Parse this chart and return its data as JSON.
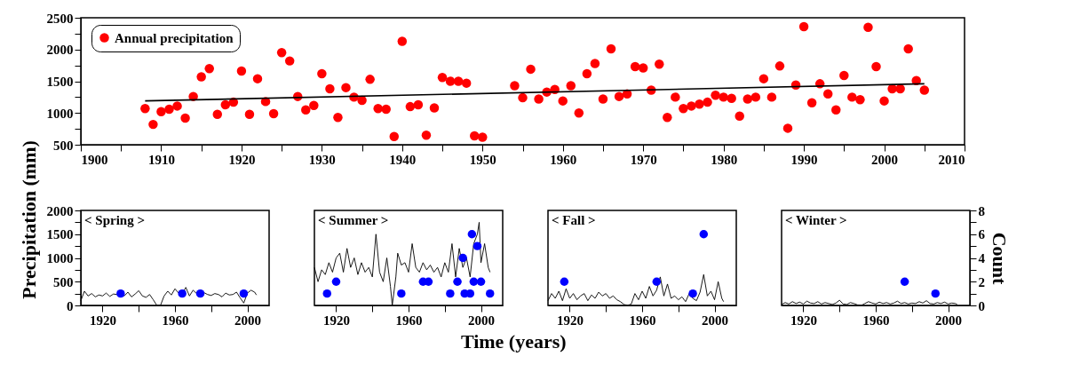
{
  "chart_data": [
    {
      "type": "scatter",
      "xlim": [
        1900,
        2010
      ],
      "ylim": [
        500,
        2500
      ],
      "marker": "circle",
      "legend": "top left",
      "grid": false,
      "xticks": [
        1900,
        {
          "value": 1905,
          "label": null
        },
        1910,
        {
          "value": 1915,
          "label": null
        },
        1920,
        {
          "value": 1925,
          "label": null
        },
        1930,
        {
          "value": 1935,
          "label": null
        },
        1940,
        {
          "value": 1945,
          "label": null
        },
        1950,
        {
          "value": 1955,
          "label": null
        },
        1960,
        {
          "value": 1965,
          "label": null
        },
        1970,
        {
          "value": 1975,
          "label": null
        },
        1980,
        {
          "value": 1985,
          "label": null
        },
        1990,
        {
          "value": 1995,
          "label": null
        },
        2000,
        {
          "value": 2005,
          "label": null
        },
        2010
      ],
      "yticks": [
        500,
        {
          "value": 750,
          "label": null
        },
        1000,
        {
          "value": 1250,
          "label": null
        },
        1500,
        {
          "value": 1750,
          "label": null
        },
        2000,
        {
          "value": 2250,
          "label": null
        },
        2500
      ],
      "series": [
        {
          "name": "Annual precipitation",
          "color": "#ff0000",
          "x": [
            1908,
            1909,
            1910,
            1911,
            1912,
            1913,
            1914,
            1915,
            1916,
            1917,
            1918,
            1919,
            1920,
            1921,
            1922,
            1923,
            1924,
            1925,
            1926,
            1927,
            1928,
            1929,
            1930,
            1931,
            1932,
            1933,
            1934,
            1935,
            1936,
            1937,
            1938,
            1939,
            1940,
            1941,
            1942,
            1943,
            1944,
            1945,
            1946,
            1947,
            1948,
            1949,
            1950,
            1954,
            1955,
            1956,
            1957,
            1958,
            1959,
            1960,
            1961,
            1962,
            1963,
            1964,
            1965,
            1966,
            1967,
            1968,
            1969,
            1970,
            1971,
            1972,
            1973,
            1974,
            1975,
            1976,
            1977,
            1978,
            1979,
            1980,
            1981,
            1982,
            1983,
            1984,
            1985,
            1986,
            1987,
            1988,
            1989,
            1990,
            1991,
            1992,
            1993,
            1994,
            1995,
            1996,
            1997,
            1998,
            1999,
            2000,
            2001,
            2002,
            2003,
            2004,
            2005
          ],
          "values": [
            1070,
            820,
            1020,
            1060,
            1110,
            920,
            1260,
            1570,
            1700,
            980,
            1130,
            1170,
            1660,
            980,
            1540,
            1180,
            990,
            1950,
            1820,
            1260,
            1050,
            1120,
            1620,
            1380,
            930,
            1400,
            1250,
            1200,
            1530,
            1070,
            1060,
            630,
            2130,
            1100,
            1130,
            650,
            1080,
            1560,
            1500,
            1500,
            1470,
            640,
            620,
            1430,
            1240,
            1690,
            1220,
            1330,
            1370,
            1190,
            1430,
            1000,
            1620,
            1780,
            1220,
            2010,
            1260,
            1300,
            1730,
            1710,
            1360,
            1770,
            930,
            1250,
            1070,
            1110,
            1140,
            1170,
            1280,
            1250,
            1230,
            950,
            1220,
            1250,
            1540,
            1250,
            1740,
            760,
            1440,
            2360,
            1160,
            1460,
            1300,
            1050,
            1590,
            1250,
            1210,
            2350,
            1730,
            1190,
            1380,
            1380,
            2010,
            1510,
            1360
          ]
        },
        {
          "type": "line",
          "marker": "none",
          "color": "#000000",
          "x": [
            1908,
            2005
          ],
          "values": [
            1190,
            1460
          ]
        }
      ]
    },
    {
      "type": "line",
      "title": "< Spring >",
      "ylabel": "Precipitation (mm)",
      "xlim": [
        1908,
        2012
      ],
      "ylim": [
        0,
        2000
      ],
      "y2lim": [
        0,
        8
      ],
      "tick_labels": "xy",
      "marker": "circle",
      "grid": false,
      "xticks": [
        1920,
        {
          "value": 1940,
          "label": null
        },
        1960,
        {
          "value": 1980,
          "label": null
        },
        2000
      ],
      "yticks": [
        0,
        {
          "value": 250,
          "label": null
        },
        500,
        {
          "value": 750,
          "label": null
        },
        1000,
        {
          "value": 1250,
          "label": null
        },
        1500,
        {
          "value": 1750,
          "label": null
        },
        2000
      ],
      "series": [
        {
          "marker": "none",
          "color": "#000000",
          "x": [
            1908,
            1910,
            1912,
            1914,
            1916,
            1918,
            1920,
            1922,
            1924,
            1926,
            1928,
            1930,
            1932,
            1934,
            1936,
            1938,
            1940,
            1942,
            1944,
            1946,
            1948,
            1950,
            1952,
            1954,
            1956,
            1958,
            1960,
            1962,
            1964,
            1966,
            1968,
            1970,
            1972,
            1974,
            1976,
            1978,
            1980,
            1982,
            1984,
            1986,
            1988,
            1990,
            1992,
            1994,
            1996,
            1998,
            2000,
            2002,
            2004,
            2005
          ],
          "values": [
            100,
            300,
            200,
            250,
            180,
            220,
            200,
            260,
            190,
            240,
            230,
            250,
            200,
            280,
            180,
            240,
            310,
            200,
            170,
            230,
            120,
            0,
            0,
            200,
            300,
            220,
            350,
            260,
            240,
            380,
            200,
            320,
            250,
            200,
            270,
            230,
            210,
            250,
            230,
            180,
            260,
            220,
            230,
            280,
            160,
            50,
            260,
            320,
            280,
            220
          ]
        },
        {
          "type": "scatter",
          "axis": "y2",
          "color": "#0000ff",
          "x": [
            1930,
            1964,
            1974,
            1998
          ],
          "values": [
            1,
            1,
            1,
            1
          ]
        }
      ]
    },
    {
      "type": "line",
      "title": "< Summer >",
      "xlabel": "Time (years)",
      "xlim": [
        1908,
        2012
      ],
      "ylim": [
        0,
        2000
      ],
      "y2lim": [
        0,
        8
      ],
      "tick_labels": "x",
      "marker": "circle",
      "grid": false,
      "xticks": [
        1920,
        {
          "value": 1940,
          "label": null
        },
        1960,
        {
          "value": 1980,
          "label": null
        },
        2000
      ],
      "series": [
        {
          "marker": "none",
          "color": "#000000",
          "x": [
            1908,
            1910,
            1912,
            1914,
            1916,
            1918,
            1920,
            1922,
            1924,
            1926,
            1928,
            1930,
            1932,
            1934,
            1936,
            1938,
            1940,
            1942,
            1944,
            1946,
            1948,
            1950,
            1951,
            1953,
            1954,
            1956,
            1958,
            1960,
            1962,
            1964,
            1966,
            1968,
            1970,
            1972,
            1974,
            1976,
            1978,
            1980,
            1982,
            1984,
            1986,
            1988,
            1990,
            1992,
            1994,
            1996,
            1998,
            1999,
            2000,
            2002,
            2004,
            2005
          ],
          "values": [
            800,
            500,
            750,
            650,
            900,
            700,
            1000,
            1100,
            700,
            1200,
            800,
            1000,
            650,
            900,
            700,
            800,
            600,
            1500,
            700,
            500,
            1000,
            400,
            0,
            600,
            1100,
            850,
            900,
            700,
            1300,
            800,
            700,
            900,
            750,
            850,
            700,
            800,
            600,
            900,
            700,
            1300,
            600,
            1200,
            800,
            1000,
            600,
            1300,
            1500,
            1750,
            900,
            1300,
            800,
            700
          ]
        },
        {
          "type": "scatter",
          "axis": "y2",
          "color": "#0000ff",
          "x": [
            1915,
            1920,
            1956,
            1968,
            1971,
            1983,
            1987,
            1990,
            1991,
            1994,
            1995,
            1996,
            1998,
            2000,
            2005
          ],
          "values": [
            1,
            2,
            1,
            2,
            2,
            1,
            2,
            4,
            1,
            1,
            6,
            2,
            5,
            2,
            1
          ]
        }
      ]
    },
    {
      "type": "line",
      "title": "< Fall >",
      "xlim": [
        1908,
        2012
      ],
      "ylim": [
        0,
        2000
      ],
      "y2lim": [
        0,
        8
      ],
      "tick_labels": "x",
      "marker": "circle",
      "grid": false,
      "xticks": [
        1920,
        {
          "value": 1940,
          "label": null
        },
        1960,
        {
          "value": 1980,
          "label": null
        },
        2000
      ],
      "series": [
        {
          "marker": "none",
          "color": "#000000",
          "x": [
            1908,
            1910,
            1912,
            1914,
            1916,
            1918,
            1920,
            1922,
            1924,
            1926,
            1928,
            1930,
            1932,
            1934,
            1936,
            1938,
            1940,
            1942,
            1944,
            1946,
            1948,
            1950,
            1952,
            1954,
            1956,
            1958,
            1960,
            1962,
            1964,
            1966,
            1968,
            1970,
            1972,
            1974,
            1976,
            1978,
            1980,
            1982,
            1984,
            1986,
            1988,
            1990,
            1992,
            1994,
            1996,
            1998,
            2000,
            2002,
            2004,
            2005
          ],
          "values": [
            100,
            250,
            150,
            300,
            100,
            350,
            150,
            250,
            120,
            200,
            250,
            100,
            220,
            150,
            280,
            200,
            250,
            150,
            200,
            120,
            80,
            20,
            0,
            30,
            250,
            120,
            300,
            150,
            400,
            200,
            320,
            600,
            200,
            450,
            150,
            200,
            120,
            180,
            80,
            250,
            150,
            100,
            280,
            650,
            200,
            300,
            120,
            500,
            150,
            80
          ]
        },
        {
          "type": "scatter",
          "axis": "y2",
          "color": "#0000ff",
          "x": [
            1917,
            1968,
            1988,
            1994
          ],
          "values": [
            2,
            2,
            1,
            6
          ]
        }
      ]
    },
    {
      "type": "line",
      "title": "< Winter >",
      "y2label": "Count",
      "xlim": [
        1908,
        2012
      ],
      "ylim": [
        0,
        2000
      ],
      "y2lim": [
        0,
        8
      ],
      "tick_labels": "xy2",
      "marker": "circle",
      "grid": false,
      "xticks": [
        1920,
        {
          "value": 1940,
          "label": null
        },
        1960,
        {
          "value": 1980,
          "label": null
        },
        2000
      ],
      "y2ticks": [
        0,
        {
          "value": 1,
          "label": null
        },
        2,
        {
          "value": 3,
          "label": null
        },
        4,
        {
          "value": 5,
          "label": null
        },
        6,
        {
          "value": 7,
          "label": null
        },
        8
      ],
      "series": [
        {
          "marker": "none",
          "color": "#000000",
          "x": [
            1908,
            1910,
            1912,
            1914,
            1916,
            1918,
            1920,
            1922,
            1924,
            1926,
            1928,
            1930,
            1932,
            1934,
            1936,
            1938,
            1940,
            1942,
            1944,
            1946,
            1948,
            1950,
            1952,
            1954,
            1956,
            1958,
            1960,
            1962,
            1964,
            1966,
            1968,
            1970,
            1972,
            1974,
            1976,
            1978,
            1980,
            1982,
            1984,
            1986,
            1988,
            1990,
            1992,
            1994,
            1996,
            1998,
            2000,
            2002,
            2004,
            2005
          ],
          "values": [
            20,
            60,
            30,
            80,
            40,
            70,
            30,
            90,
            50,
            40,
            80,
            30,
            60,
            40,
            20,
            50,
            110,
            30,
            20,
            60,
            40,
            10,
            0,
            40,
            80,
            50,
            30,
            70,
            40,
            60,
            30,
            50,
            90,
            40,
            60,
            30,
            50,
            40,
            80,
            50,
            100,
            40,
            30,
            60,
            40,
            70,
            30,
            50,
            40,
            20
          ]
        },
        {
          "type": "scatter",
          "axis": "y2",
          "color": "#0000ff",
          "x": [
            1976,
            1993
          ],
          "values": [
            2,
            1
          ]
        }
      ]
    }
  ]
}
